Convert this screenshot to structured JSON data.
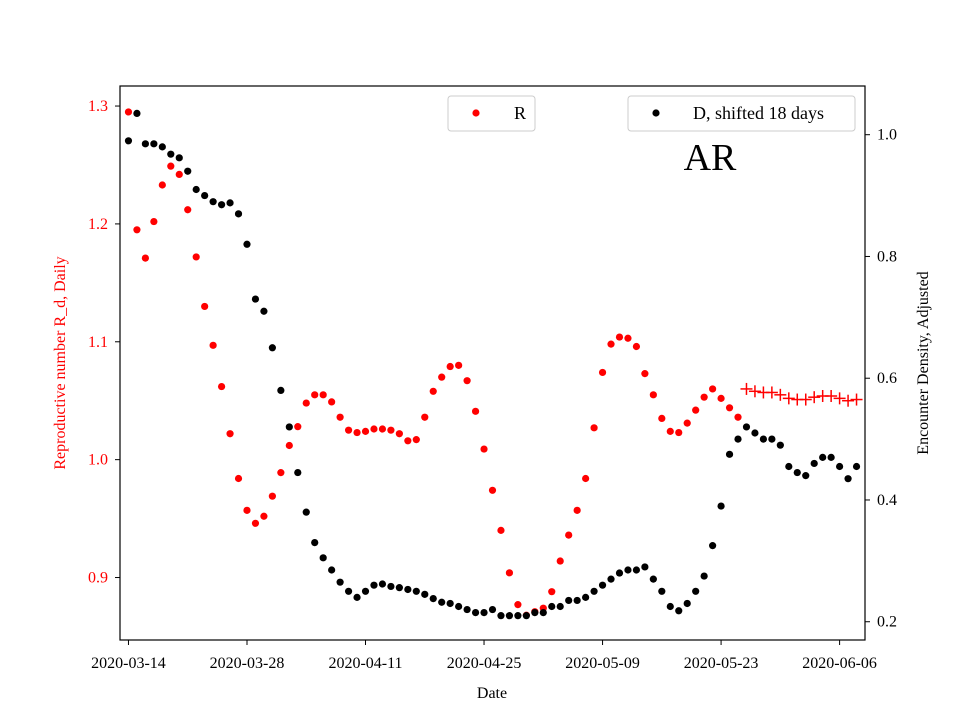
{
  "chart_data": {
    "type": "scatter",
    "annotation": "AR",
    "xlabel": "Date",
    "ylabel_left": "Reproductive number R_d, Daily",
    "ylabel_right": "Encounter Density, Adjusted",
    "x_ticks": [
      "2020-03-14",
      "2020-03-28",
      "2020-04-11",
      "2020-04-25",
      "2020-05-09",
      "2020-05-23",
      "2020-06-06"
    ],
    "y_left_ticks": [
      "0.9",
      "1.0",
      "1.1",
      "1.2",
      "1.3"
    ],
    "y_right_ticks": [
      "0.2",
      "0.4",
      "0.6",
      "0.8",
      "1.0"
    ],
    "xlim": [
      "2020-03-13",
      "2020-06-09"
    ],
    "ylim_left": [
      0.847,
      1.317
    ],
    "ylim_right": [
      0.17,
      1.08
    ],
    "grid": false,
    "legends": [
      {
        "label": "R",
        "color": "#ff0000",
        "placement": "top-center"
      },
      {
        "label": "D, shifted 18 days",
        "color": "#000000",
        "placement": "top-right"
      }
    ],
    "colors": {
      "r_series": "#ff0000",
      "d_series": "#000000",
      "projection": "#ff0000"
    },
    "series": [
      {
        "name": "R",
        "axis": "left",
        "marker": "dot",
        "color": "#ff0000",
        "x": [
          "2020-03-14",
          "2020-03-15",
          "2020-03-16",
          "2020-03-17",
          "2020-03-18",
          "2020-03-19",
          "2020-03-20",
          "2020-03-21",
          "2020-03-22",
          "2020-03-23",
          "2020-03-24",
          "2020-03-25",
          "2020-03-26",
          "2020-03-27",
          "2020-03-28",
          "2020-03-29",
          "2020-03-30",
          "2020-03-31",
          "2020-04-01",
          "2020-04-02",
          "2020-04-03",
          "2020-04-04",
          "2020-04-05",
          "2020-04-06",
          "2020-04-07",
          "2020-04-08",
          "2020-04-09",
          "2020-04-10",
          "2020-04-11",
          "2020-04-12",
          "2020-04-13",
          "2020-04-14",
          "2020-04-15",
          "2020-04-16",
          "2020-04-17",
          "2020-04-18",
          "2020-04-19",
          "2020-04-20",
          "2020-04-21",
          "2020-04-22",
          "2020-04-23",
          "2020-04-24",
          "2020-04-25",
          "2020-04-26",
          "2020-04-27",
          "2020-04-28",
          "2020-04-29",
          "2020-04-30",
          "2020-05-01",
          "2020-05-02",
          "2020-05-03",
          "2020-05-04",
          "2020-05-05",
          "2020-05-06",
          "2020-05-07",
          "2020-05-08",
          "2020-05-09",
          "2020-05-10",
          "2020-05-11",
          "2020-05-12",
          "2020-05-13",
          "2020-05-14",
          "2020-05-15",
          "2020-05-16",
          "2020-05-17",
          "2020-05-18",
          "2020-05-19",
          "2020-05-20",
          "2020-05-21",
          "2020-05-22",
          "2020-05-23",
          "2020-05-24",
          "2020-05-25"
        ],
        "y": [
          1.295,
          1.195,
          1.171,
          1.202,
          1.233,
          1.249,
          1.242,
          1.212,
          1.172,
          1.13,
          1.097,
          1.062,
          1.022,
          0.984,
          0.957,
          0.946,
          0.952,
          0.969,
          0.989,
          1.012,
          1.028,
          1.048,
          1.055,
          1.055,
          1.049,
          1.036,
          1.025,
          1.023,
          1.024,
          1.026,
          1.026,
          1.025,
          1.022,
          1.016,
          1.017,
          1.036,
          1.058,
          1.07,
          1.079,
          1.08,
          1.067,
          1.041,
          1.009,
          0.974,
          0.94,
          0.904,
          0.877,
          0.868,
          0.871,
          0.874,
          0.888,
          0.914,
          0.936,
          0.957,
          0.984,
          1.027,
          1.074,
          1.098,
          1.104,
          1.103,
          1.096,
          1.073,
          1.055,
          1.035,
          1.024,
          1.023,
          1.031,
          1.042,
          1.053,
          1.06,
          1.052,
          1.044,
          1.036
        ]
      },
      {
        "name": "R",
        "axis": "left",
        "marker": "plus",
        "color": "#ff0000",
        "x": [
          "2020-05-26",
          "2020-05-27",
          "2020-05-28",
          "2020-05-29",
          "2020-05-30",
          "2020-05-31",
          "2020-06-01",
          "2020-06-02",
          "2020-06-03",
          "2020-06-04",
          "2020-06-05",
          "2020-06-06",
          "2020-06-07",
          "2020-06-08"
        ],
        "y": [
          1.06,
          1.058,
          1.057,
          1.057,
          1.055,
          1.052,
          1.051,
          1.051,
          1.053,
          1.054,
          1.054,
          1.052,
          1.05,
          1.051
        ]
      },
      {
        "name": "D, shifted 18 days",
        "axis": "right",
        "marker": "dot",
        "color": "#000000",
        "x": [
          "2020-03-14",
          "2020-03-15",
          "2020-03-16",
          "2020-03-17",
          "2020-03-18",
          "2020-03-19",
          "2020-03-20",
          "2020-03-21",
          "2020-03-22",
          "2020-03-23",
          "2020-03-24",
          "2020-03-25",
          "2020-03-26",
          "2020-03-27",
          "2020-03-28",
          "2020-03-29",
          "2020-03-30",
          "2020-03-31",
          "2020-04-01",
          "2020-04-02",
          "2020-04-03",
          "2020-04-04",
          "2020-04-05",
          "2020-04-06",
          "2020-04-07",
          "2020-04-08",
          "2020-04-09",
          "2020-04-10",
          "2020-04-11",
          "2020-04-12",
          "2020-04-13",
          "2020-04-14",
          "2020-04-15",
          "2020-04-16",
          "2020-04-17",
          "2020-04-18",
          "2020-04-19",
          "2020-04-20",
          "2020-04-21",
          "2020-04-22",
          "2020-04-23",
          "2020-04-24",
          "2020-04-25",
          "2020-04-26",
          "2020-04-27",
          "2020-04-28",
          "2020-04-29",
          "2020-04-30",
          "2020-05-01",
          "2020-05-02",
          "2020-05-03",
          "2020-05-04",
          "2020-05-05",
          "2020-05-06",
          "2020-05-07",
          "2020-05-08",
          "2020-05-09",
          "2020-05-10",
          "2020-05-11",
          "2020-05-12",
          "2020-05-13",
          "2020-05-14",
          "2020-05-15",
          "2020-05-16",
          "2020-05-17",
          "2020-05-18",
          "2020-05-19",
          "2020-05-20",
          "2020-05-21",
          "2020-05-22",
          "2020-05-23",
          "2020-05-24",
          "2020-05-25",
          "2020-05-26",
          "2020-05-27",
          "2020-05-28",
          "2020-05-29",
          "2020-05-30",
          "2020-05-31",
          "2020-06-01",
          "2020-06-02",
          "2020-06-03",
          "2020-06-04",
          "2020-06-05",
          "2020-06-06",
          "2020-06-07",
          "2020-06-08"
        ],
        "y": [
          0.99,
          1.035,
          0.985,
          0.985,
          0.98,
          0.968,
          0.962,
          0.94,
          0.91,
          0.9,
          0.89,
          0.885,
          0.888,
          0.87,
          0.82,
          0.73,
          0.71,
          0.65,
          0.58,
          0.52,
          0.445,
          0.38,
          0.33,
          0.305,
          0.285,
          0.265,
          0.25,
          0.24,
          0.25,
          0.26,
          0.262,
          0.258,
          0.256,
          0.253,
          0.25,
          0.245,
          0.238,
          0.232,
          0.23,
          0.225,
          0.22,
          0.215,
          0.215,
          0.22,
          0.21,
          0.21,
          0.21,
          0.21,
          0.215,
          0.215,
          0.225,
          0.225,
          0.235,
          0.235,
          0.24,
          0.25,
          0.26,
          0.27,
          0.28,
          0.285,
          0.285,
          0.29,
          0.27,
          0.25,
          0.225,
          0.218,
          0.23,
          0.25,
          0.275,
          0.325,
          0.39,
          0.475,
          0.5,
          0.52,
          0.51,
          0.5,
          0.5,
          0.49,
          0.455,
          0.445,
          0.44,
          0.46,
          0.47,
          0.47,
          0.455,
          0.435,
          0.455
        ]
      }
    ]
  }
}
